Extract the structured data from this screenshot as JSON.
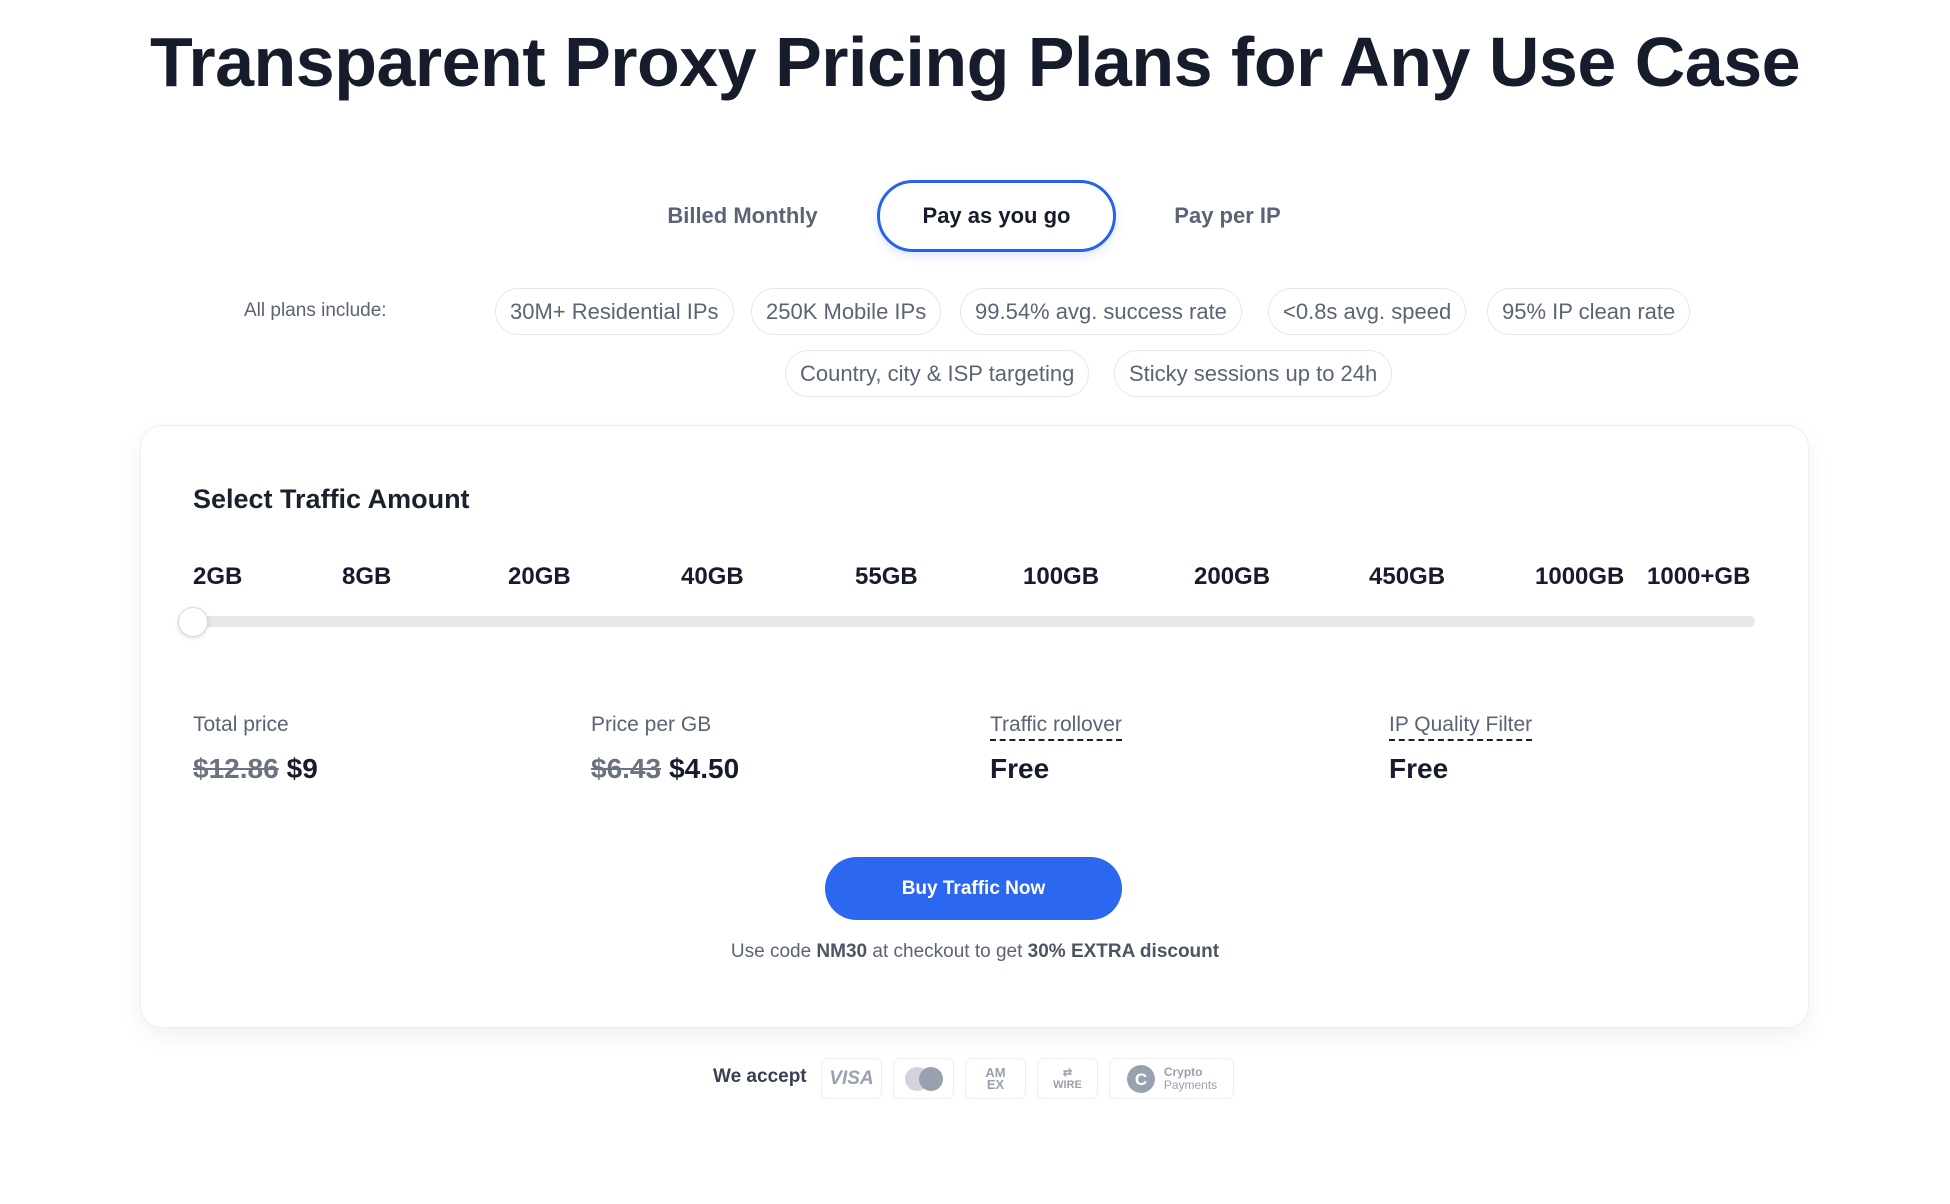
{
  "title": "Transparent Proxy Pricing Plans for Any Use Case",
  "tabs": [
    {
      "label": "Billed Monthly",
      "active": false
    },
    {
      "label": "Pay as you go",
      "active": true
    },
    {
      "label": "Pay per IP",
      "active": false
    }
  ],
  "includes": {
    "label": "All plans include:",
    "chips": [
      "30M+ Residential IPs",
      "250K Mobile IPs",
      "99.54% avg. success rate",
      "<0.8s avg. speed",
      "95% IP clean rate",
      "Country, city & ISP targeting",
      "Sticky sessions up to 24h"
    ]
  },
  "traffic": {
    "heading": "Select Traffic Amount",
    "options": [
      "2GB",
      "8GB",
      "20GB",
      "40GB",
      "55GB",
      "100GB",
      "200GB",
      "450GB",
      "1000GB",
      "1000+GB"
    ],
    "selected": "2GB"
  },
  "stats": [
    {
      "label": "Total price",
      "old": "$12.86",
      "value": "$9"
    },
    {
      "label": "Price per GB",
      "old": "$6.43",
      "value": "$4.50"
    },
    {
      "label": "Traffic rollover",
      "value": "Free"
    },
    {
      "label": "IP Quality Filter",
      "value": "Free"
    }
  ],
  "buy_label": "Buy Traffic Now",
  "promo": {
    "pre": "Use code ",
    "code": "NM30",
    "mid": " at checkout to get ",
    "discount": "30% EXTRA discount"
  },
  "payments": {
    "label": "We accept",
    "visa": "VISA",
    "amex1": "AM",
    "amex2": "EX",
    "wire": "WIRE",
    "crypto1": "Crypto",
    "crypto2": "Payments"
  },
  "colors": {
    "accent": "#2b67f0",
    "text": "#161c2b",
    "muted": "#5b6474"
  }
}
